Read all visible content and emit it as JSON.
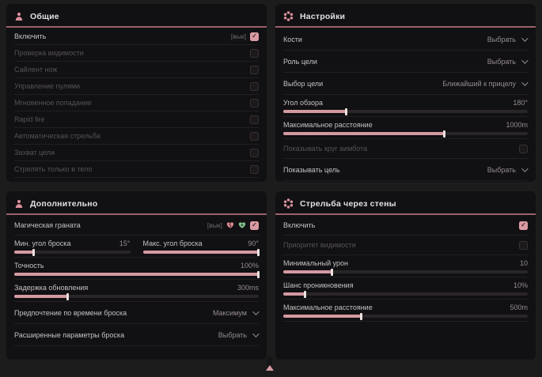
{
  "theme": {
    "background": "#1c1c1c",
    "panel": "#111013",
    "accent_pink": "#d99ba3",
    "header_underline": "#99626a",
    "label": "#c6c2c2",
    "label_disabled": "#575254",
    "value": "#958d8e",
    "heart_red": "#d9848e",
    "heart_green": "#84c08a"
  },
  "panels": [
    {
      "title": "Общие",
      "icon": "aimbot-person-icon",
      "rows": [
        {
          "type": "checkbox",
          "label": "Включить",
          "hotkey": "[вык]",
          "checked": true,
          "enabled": true
        },
        {
          "type": "checkbox",
          "label": "Проверка видимости",
          "checked": false,
          "enabled": false
        },
        {
          "type": "checkbox",
          "label": "Сайлент нож",
          "checked": false,
          "enabled": false
        },
        {
          "type": "checkbox",
          "label": "Управление пулями",
          "checked": false,
          "enabled": false
        },
        {
          "type": "checkbox",
          "label": "Мгновенное попадание",
          "checked": false,
          "enabled": false
        },
        {
          "type": "checkbox",
          "label": "Rapid fire",
          "checked": false,
          "enabled": false
        },
        {
          "type": "checkbox",
          "label": "Автоматическая стрельба",
          "checked": false,
          "enabled": false
        },
        {
          "type": "checkbox",
          "label": "Захват цели",
          "checked": false,
          "enabled": false
        },
        {
          "type": "checkbox",
          "label": "Стрелять только в тело",
          "checked": false,
          "enabled": false
        }
      ]
    },
    {
      "title": "Настройки",
      "icon": "gear-flower-icon",
      "rows": [
        {
          "type": "dropdown",
          "label": "Кости",
          "value": "Выбрать"
        },
        {
          "type": "dropdown",
          "label": "Роль цели",
          "value": "Выбрать"
        },
        {
          "type": "dropdown",
          "label": "Выбор цели",
          "value": "Ближайший к прицелу"
        },
        {
          "type": "slider",
          "label": "Угол обзора",
          "value": "180°",
          "fill": 26
        },
        {
          "type": "slider",
          "label": "Максимальное расстояние",
          "value": "1000m",
          "fill": 66
        },
        {
          "type": "checkbox",
          "label": "Показывать круг аимбота",
          "checked": false,
          "enabled": false
        },
        {
          "type": "dropdown",
          "label": "Показывать цель",
          "value": "Выбрать"
        }
      ]
    },
    {
      "title": "Дополнительно",
      "icon": "aimbot-person-icon",
      "rows": [
        {
          "type": "checkbox-icons",
          "label": "Магическая граната",
          "hotkey": "[вык]",
          "icons": [
            "broken-heart-icon",
            "heal-heart-icon"
          ],
          "checked": true,
          "enabled": true
        },
        {
          "type": "slider-pair",
          "sliders": [
            {
              "label": "Мин. угол броска",
              "value": "15°",
              "fill": 17
            },
            {
              "label": "Макс. угол броска",
              "value": "90°",
              "fill": 100
            }
          ]
        },
        {
          "type": "slider",
          "label": "Точность",
          "value": "100%",
          "fill": 100
        },
        {
          "type": "slider",
          "label": "Задержка обновления",
          "value": "300ms",
          "fill": 22
        },
        {
          "type": "dropdown",
          "label": "Предпочтение по времени броска",
          "value": "Максимум"
        },
        {
          "type": "dropdown",
          "label": "Расширенные параметры броска",
          "value": "Выбрать"
        }
      ]
    },
    {
      "title": "Стрельба через стены",
      "icon": "gear-flower-icon",
      "rows": [
        {
          "type": "checkbox",
          "label": "Включить",
          "checked": true,
          "enabled": true
        },
        {
          "type": "checkbox",
          "label": "Приоритет видимости",
          "checked": false,
          "enabled": false
        },
        {
          "type": "slider",
          "label": "Минимальный урон",
          "value": "10",
          "fill": 20
        },
        {
          "type": "slider",
          "label": "Шанс проникновения",
          "value": "10%",
          "fill": 9
        },
        {
          "type": "slider",
          "label": "Максимальное расстояние",
          "value": "500m",
          "fill": 32
        }
      ]
    }
  ],
  "footer": {
    "scroll_indicator": "up-arrow"
  }
}
